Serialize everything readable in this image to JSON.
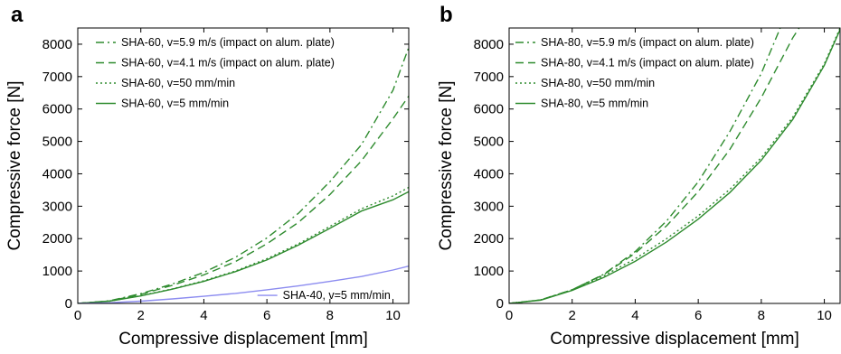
{
  "chart_data": [
    {
      "panel_label": "a",
      "type": "line",
      "xlabel": "Compressive displacement [mm]",
      "ylabel": "Compressive force [N]",
      "xlim": [
        0,
        10.5
      ],
      "ylim": [
        0,
        8500
      ],
      "xticks": [
        0,
        2,
        4,
        6,
        8,
        10
      ],
      "yticks": [
        0,
        1000,
        2000,
        3000,
        4000,
        5000,
        6000,
        7000,
        8000
      ],
      "grid": false,
      "legend": "top-left",
      "series": [
        {
          "name": "SHA-60, v=5.9 m/s (impact on alum. plate)",
          "color": "#2e8b2e",
          "style": "dashdot",
          "legend": true,
          "points": [
            [
              0,
              0
            ],
            [
              1,
              80
            ],
            [
              2,
              300
            ],
            [
              3,
              600
            ],
            [
              4,
              960
            ],
            [
              5,
              1420
            ],
            [
              6,
              2020
            ],
            [
              7,
              2780
            ],
            [
              8,
              3760
            ],
            [
              9,
              4900
            ],
            [
              10,
              6580
            ],
            [
              10.5,
              7900
            ]
          ]
        },
        {
          "name": "SHA-60, v=4.1 m/s (impact on alum. plate)",
          "color": "#2e8b2e",
          "style": "dashed",
          "legend": true,
          "points": [
            [
              0,
              0
            ],
            [
              1,
              75
            ],
            [
              2,
              280
            ],
            [
              3,
              560
            ],
            [
              4,
              880
            ],
            [
              5,
              1290
            ],
            [
              6,
              1840
            ],
            [
              7,
              2500
            ],
            [
              8,
              3360
            ],
            [
              9,
              4400
            ],
            [
              10,
              5700
            ],
            [
              10.5,
              6400
            ]
          ]
        },
        {
          "name": "SHA-60, v=50 mm/min",
          "color": "#2e8b2e",
          "style": "dotted",
          "legend": true,
          "points": [
            [
              0,
              0
            ],
            [
              1,
              70
            ],
            [
              2,
              240
            ],
            [
              3,
              450
            ],
            [
              4,
              700
            ],
            [
              5,
              1000
            ],
            [
              6,
              1380
            ],
            [
              7,
              1840
            ],
            [
              8,
              2380
            ],
            [
              9,
              2920
            ],
            [
              10,
              3320
            ],
            [
              10.5,
              3580
            ]
          ]
        },
        {
          "name": "SHA-60, v=5 mm/min",
          "color": "#2e8b2e",
          "style": "solid",
          "legend": true,
          "points": [
            [
              0,
              0
            ],
            [
              1,
              70
            ],
            [
              2,
              230
            ],
            [
              3,
              440
            ],
            [
              4,
              680
            ],
            [
              5,
              980
            ],
            [
              6,
              1340
            ],
            [
              7,
              1800
            ],
            [
              8,
              2320
            ],
            [
              9,
              2850
            ],
            [
              10,
              3200
            ],
            [
              10.5,
              3450
            ]
          ]
        },
        {
          "name": "SHA-40, v=5 mm/min",
          "color": "#8c8cf0",
          "style": "solid",
          "legend": false,
          "points": [
            [
              0,
              0
            ],
            [
              1,
              20
            ],
            [
              2,
              70
            ],
            [
              3,
              140
            ],
            [
              4,
              220
            ],
            [
              5,
              310
            ],
            [
              6,
              420
            ],
            [
              7,
              540
            ],
            [
              8,
              680
            ],
            [
              9,
              830
            ],
            [
              10,
              1030
            ],
            [
              10.5,
              1150
            ]
          ]
        }
      ]
    },
    {
      "panel_label": "b",
      "type": "line",
      "xlabel": "Compressive displacement [mm]",
      "ylabel": "Compressive force [N]",
      "xlim": [
        0,
        10.5
      ],
      "ylim": [
        0,
        8500
      ],
      "xticks": [
        0,
        2,
        4,
        6,
        8,
        10
      ],
      "yticks": [
        0,
        1000,
        2000,
        3000,
        4000,
        5000,
        6000,
        7000,
        8000
      ],
      "grid": false,
      "legend": "top-left",
      "series": [
        {
          "name": "SHA-80, v=5.9 m/s (impact on alum. plate)",
          "color": "#2e8b2e",
          "style": "dashdot",
          "legend": true,
          "points": [
            [
              0,
              0
            ],
            [
              1,
              110
            ],
            [
              2,
              420
            ],
            [
              3,
              900
            ],
            [
              4,
              1600
            ],
            [
              5,
              2550
            ],
            [
              6,
              3750
            ],
            [
              7,
              5300
            ],
            [
              8,
              7100
            ],
            [
              8.6,
              8500
            ]
          ]
        },
        {
          "name": "SHA-80, v=4.1 m/s (impact on alum. plate)",
          "color": "#2e8b2e",
          "style": "dashed",
          "legend": true,
          "points": [
            [
              0,
              0
            ],
            [
              1,
              110
            ],
            [
              2,
              420
            ],
            [
              3,
              890
            ],
            [
              4,
              1550
            ],
            [
              5,
              2400
            ],
            [
              6,
              3450
            ],
            [
              7,
              4750
            ],
            [
              8,
              6350
            ],
            [
              9,
              8200
            ],
            [
              9.2,
              8500
            ]
          ]
        },
        {
          "name": "SHA-80, v=50 mm/min",
          "color": "#2e8b2e",
          "style": "dotted",
          "legend": true,
          "points": [
            [
              0,
              0
            ],
            [
              1,
              110
            ],
            [
              2,
              420
            ],
            [
              3,
              850
            ],
            [
              4,
              1380
            ],
            [
              5,
              2000
            ],
            [
              6,
              2700
            ],
            [
              7,
              3520
            ],
            [
              8,
              4500
            ],
            [
              9,
              5750
            ],
            [
              10,
              7400
            ],
            [
              10.5,
              8500
            ]
          ]
        },
        {
          "name": "SHA-80, v=5 mm/min",
          "color": "#2e8b2e",
          "style": "solid",
          "legend": true,
          "points": [
            [
              0,
              0
            ],
            [
              1,
              100
            ],
            [
              2,
              400
            ],
            [
              3,
              800
            ],
            [
              4,
              1300
            ],
            [
              5,
              1900
            ],
            [
              6,
              2600
            ],
            [
              7,
              3420
            ],
            [
              8,
              4420
            ],
            [
              9,
              5680
            ],
            [
              10,
              7350
            ],
            [
              10.5,
              8450
            ]
          ]
        }
      ]
    }
  ]
}
